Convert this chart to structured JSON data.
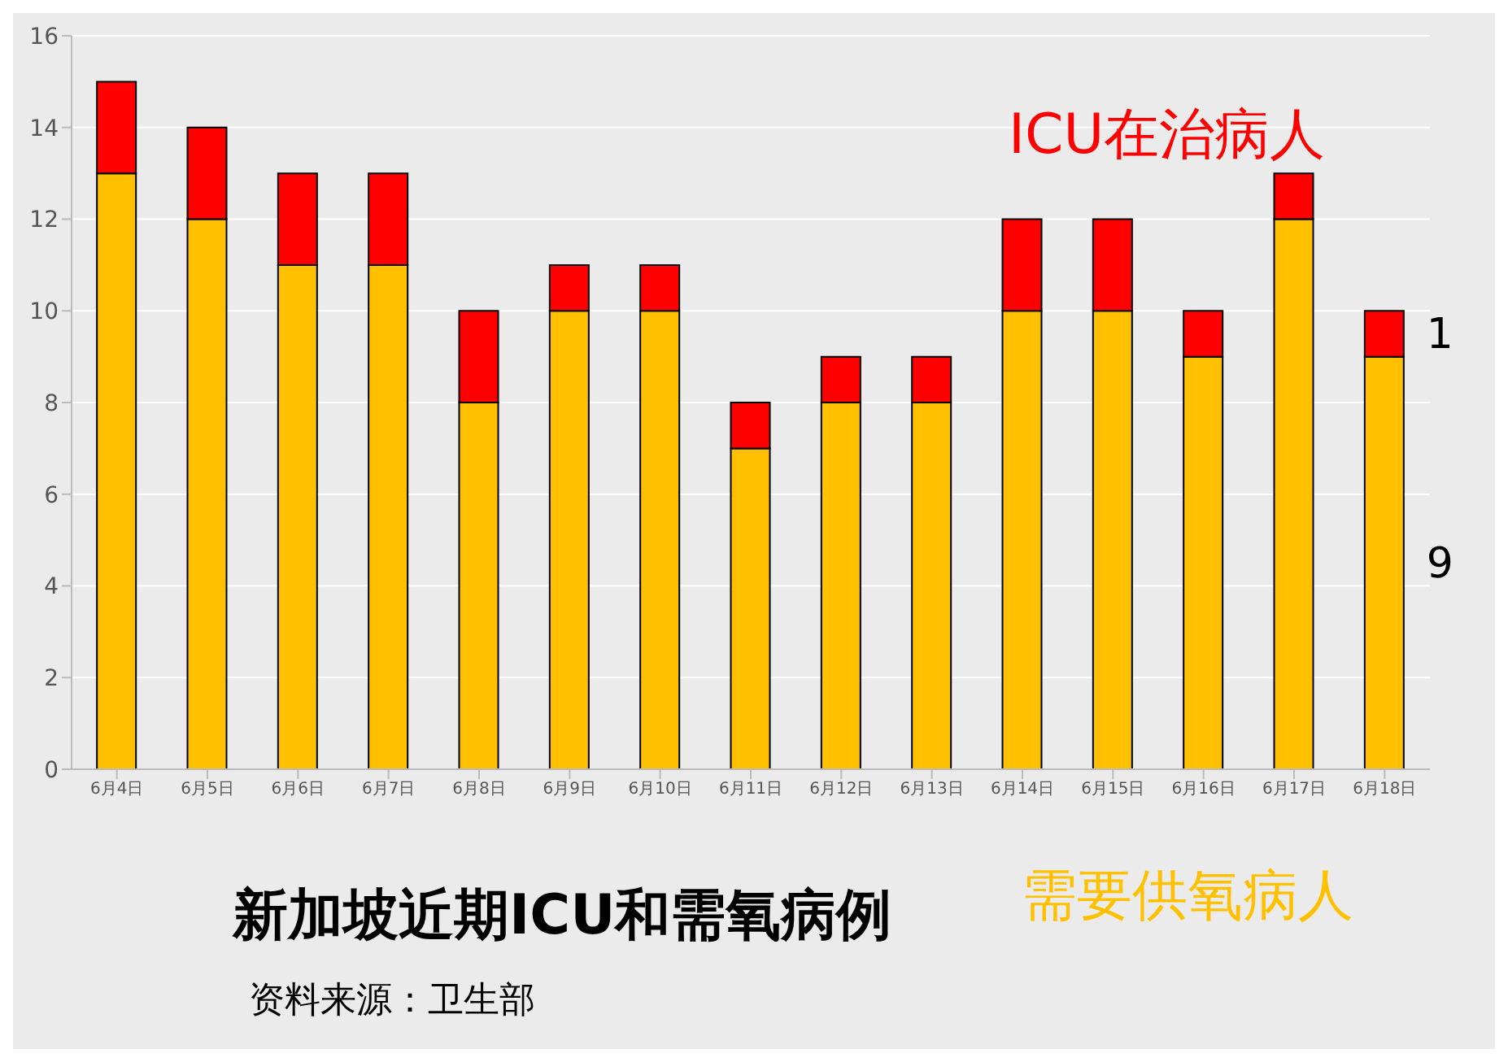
{
  "chart_data": {
    "type": "bar",
    "title": "新加坡近期ICU和需氧病例",
    "annotations": [
      "资料来源：卫生部"
    ],
    "categories": [
      "6月4日",
      "6月5日",
      "6月6日",
      "6月7日",
      "6月8日",
      "6月9日",
      "6月10日",
      "6月11日",
      "6月12日",
      "6月13日",
      "6月14日",
      "6月15日",
      "6月16日",
      "6月17日",
      "6月18日"
    ],
    "series": [
      {
        "name": "需要供氧病人",
        "color": "#ffc000",
        "values": [
          13,
          12,
          11,
          11,
          8,
          10,
          10,
          7,
          8,
          8,
          10,
          10,
          9,
          12,
          9
        ],
        "value_labels": [
          null,
          null,
          null,
          null,
          null,
          null,
          null,
          null,
          null,
          null,
          null,
          null,
          null,
          null,
          "9"
        ]
      },
      {
        "name": "ICU在治病人",
        "color": "#ff0000",
        "values": [
          2,
          2,
          2,
          2,
          2,
          1,
          1,
          1,
          1,
          1,
          2,
          2,
          1,
          1,
          1
        ],
        "value_labels": [
          null,
          null,
          null,
          null,
          null,
          null,
          null,
          null,
          null,
          null,
          null,
          null,
          null,
          null,
          "1"
        ]
      }
    ],
    "stacked": true,
    "ylim": [
      0,
      16
    ],
    "yticks": [
      0,
      2,
      4,
      6,
      8,
      10,
      12,
      14,
      16
    ],
    "grid": "y"
  }
}
